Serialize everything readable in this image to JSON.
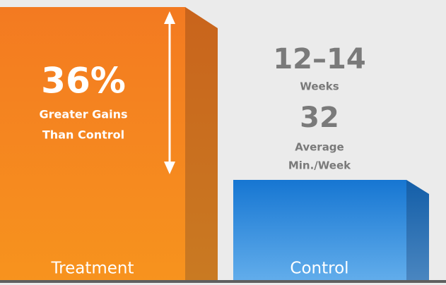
{
  "treatment": {
    "label": "Treatment",
    "stat": "36%",
    "caption": [
      "Greater Gains",
      "Than Control"
    ]
  },
  "control": {
    "label": "Control"
  },
  "duration": {
    "value": "12–14",
    "unit": "Weeks"
  },
  "time": {
    "value": "32",
    "unit": [
      "Average",
      "Min./Week"
    ]
  }
}
